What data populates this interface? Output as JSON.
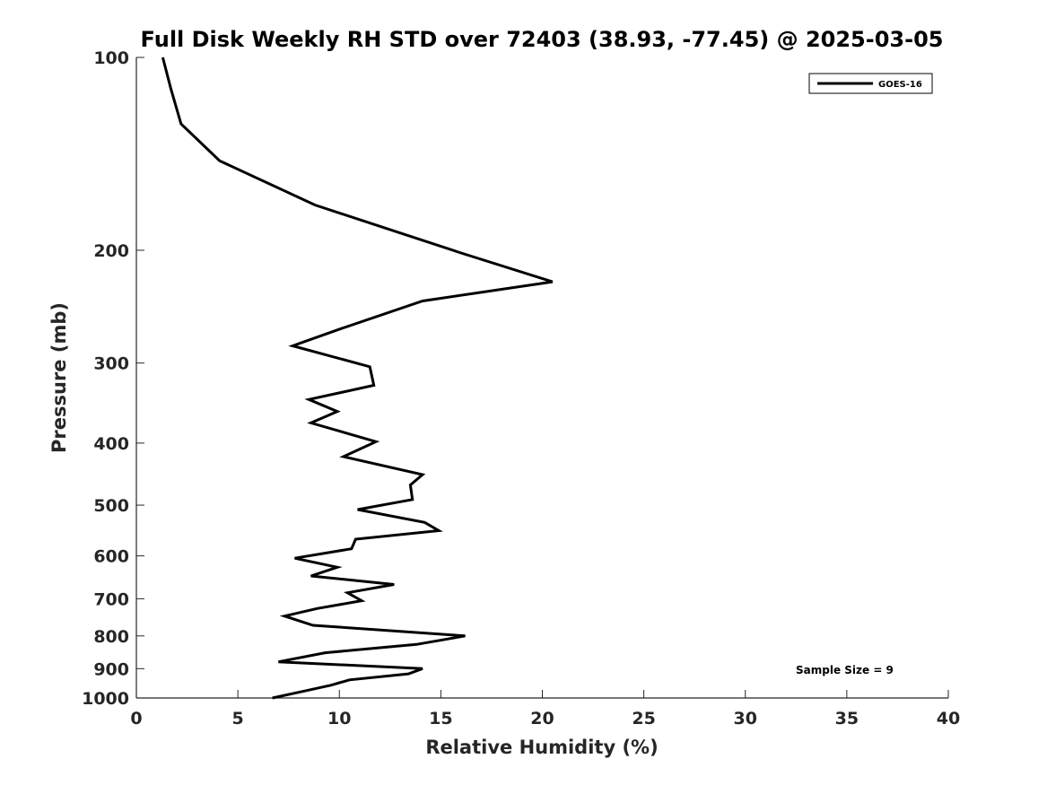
{
  "chart_data": {
    "type": "line",
    "title": "Full Disk Weekly RH STD over 72403 (38.93, -77.45) @ 2025-03-05",
    "xlabel": "Relative Humidity (%)",
    "ylabel": "Pressure (mb)",
    "xlim": [
      0,
      40
    ],
    "ylim": [
      100,
      1000
    ],
    "y_scale": "log",
    "y_reversed": true,
    "x_ticks": [
      0,
      5,
      10,
      15,
      20,
      25,
      30,
      35,
      40
    ],
    "x_tick_labels": [
      "0",
      "5",
      "10",
      "15",
      "20",
      "25",
      "30",
      "35",
      "40"
    ],
    "y_ticks": [
      100,
      200,
      300,
      400,
      500,
      600,
      700,
      800,
      900,
      1000
    ],
    "y_tick_labels": [
      "100",
      "200",
      "300",
      "400",
      "500",
      "600",
      "700",
      "800",
      "900",
      "1000"
    ],
    "grid": false,
    "legend_position": "top-right",
    "annotation": "Sample Size = 9",
    "series": [
      {
        "name": "GOES-16",
        "color": "#000000",
        "x": [
          1.3,
          1.7,
          2.2,
          4.1,
          8.8,
          16.0,
          20.5,
          14.1,
          10.1,
          7.7,
          11.5,
          11.7,
          8.5,
          9.9,
          8.6,
          11.8,
          10.2,
          14.1,
          13.5,
          13.6,
          10.9,
          14.2,
          14.9,
          10.8,
          10.6,
          7.8,
          9.9,
          8.6,
          12.7,
          10.4,
          11.1,
          8.9,
          7.3,
          8.7,
          16.2,
          13.8,
          9.3,
          7.0,
          14.1,
          13.4,
          10.5,
          9.6,
          8.5,
          6.7
        ],
        "y": [
          100,
          112,
          127,
          145,
          170,
          202,
          224,
          240,
          265,
          282,
          304,
          325,
          342,
          357,
          372,
          398,
          420,
          448,
          465,
          490,
          508,
          532,
          548,
          565,
          585,
          605,
          625,
          645,
          665,
          685,
          705,
          725,
          745,
          770,
          800,
          825,
          850,
          878,
          900,
          917,
          937,
          955,
          972,
          1000
        ]
      }
    ]
  }
}
